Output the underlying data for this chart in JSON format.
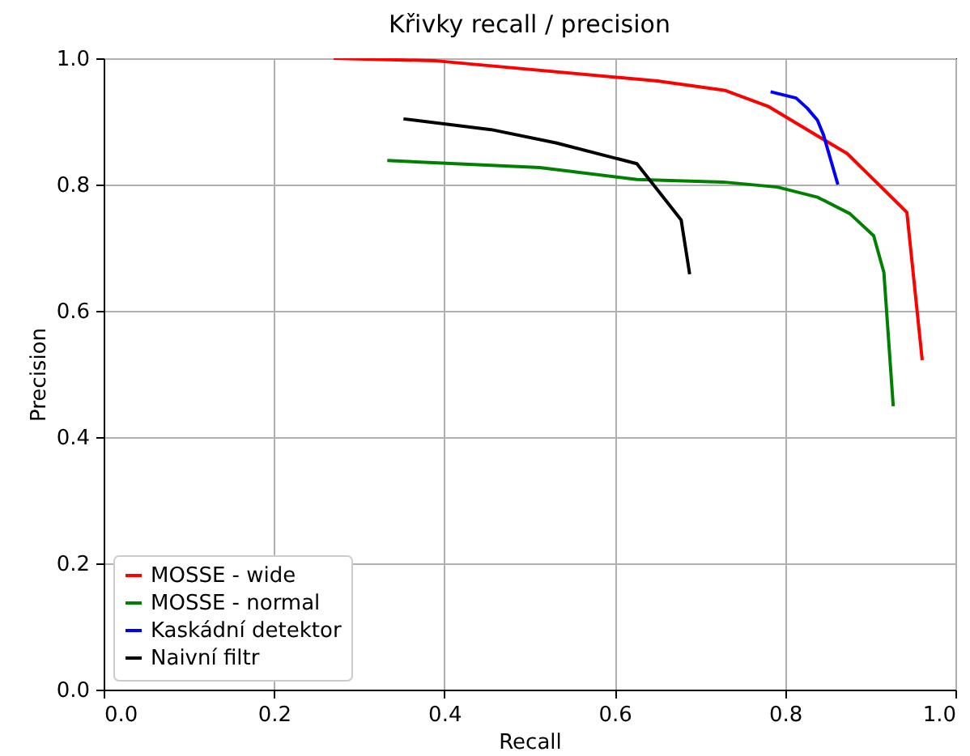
{
  "chart_data": {
    "type": "line",
    "title": "Křivky recall / precision",
    "xlabel": "Recall",
    "ylabel": "Precision",
    "xlim": [
      0,
      1
    ],
    "ylim": [
      0,
      1
    ],
    "xticks": [
      {
        "value": 0,
        "label": "0.0"
      },
      {
        "value": 0.2,
        "label": "0.2"
      },
      {
        "value": 0.4,
        "label": "0.4"
      },
      {
        "value": 0.6,
        "label": "0.6"
      },
      {
        "value": 0.8,
        "label": "0.8"
      },
      {
        "value": 1,
        "label": "1.0"
      }
    ],
    "yticks": [
      {
        "value": 0,
        "label": "0.0"
      },
      {
        "value": 0.2,
        "label": "0.2"
      },
      {
        "value": 0.4,
        "label": "0.4"
      },
      {
        "value": 0.6,
        "label": "0.6"
      },
      {
        "value": 0.8,
        "label": "0.8"
      },
      {
        "value": 1,
        "label": "1.0"
      }
    ],
    "grid": true,
    "legend": "bottom left",
    "series": [
      {
        "name": "MOSSE - wide",
        "color": "#ff0000",
        "x": [
          0.27,
          0.39,
          0.65,
          0.73,
          0.78,
          0.873,
          0.943,
          0.961
        ],
        "values": [
          1.0,
          0.996,
          0.964,
          0.949,
          0.924,
          0.849,
          0.756,
          0.522
        ]
      },
      {
        "name": "MOSSE - normal",
        "color": "#008000",
        "x": [
          0.333,
          0.512,
          0.626,
          0.727,
          0.791,
          0.838,
          0.876,
          0.904,
          0.916,
          0.927
        ],
        "values": [
          0.838,
          0.827,
          0.808,
          0.804,
          0.796,
          0.78,
          0.754,
          0.719,
          0.661,
          0.449
        ]
      },
      {
        "name": "Kaskádní detektor",
        "color": "#0000ff",
        "x": [
          0.783,
          0.813,
          0.826,
          0.838,
          0.845,
          0.862
        ],
        "values": [
          0.947,
          0.937,
          0.921,
          0.902,
          0.879,
          0.8
        ]
      },
      {
        "name": "Naivní filtr",
        "color": "#000000",
        "x": [
          0.352,
          0.455,
          0.531,
          0.626,
          0.678,
          0.688
        ],
        "values": [
          0.904,
          0.887,
          0.866,
          0.833,
          0.744,
          0.658
        ]
      }
    ]
  }
}
